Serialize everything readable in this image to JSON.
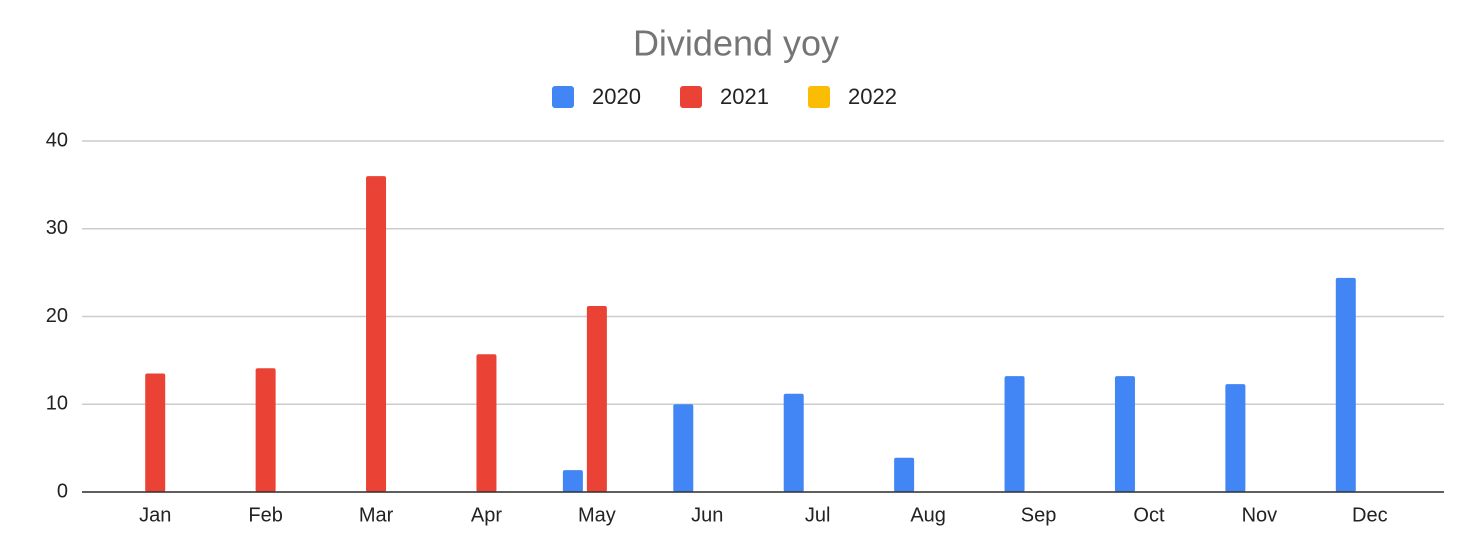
{
  "chart_data": {
    "type": "bar",
    "title": "Dividend yoy",
    "categories": [
      "Jan",
      "Feb",
      "Mar",
      "Apr",
      "May",
      "Jun",
      "Jul",
      "Aug",
      "Sep",
      "Oct",
      "Nov",
      "Dec"
    ],
    "series": [
      {
        "name": "2020",
        "color": "#4285f4",
        "values": [
          null,
          null,
          null,
          null,
          2.5,
          10.0,
          11.2,
          3.9,
          13.2,
          13.2,
          12.3,
          24.4
        ]
      },
      {
        "name": "2021",
        "color": "#ea4335",
        "values": [
          13.5,
          14.1,
          36.0,
          15.7,
          21.2,
          null,
          null,
          null,
          null,
          null,
          null,
          null
        ]
      },
      {
        "name": "2022",
        "color": "#fbbc04",
        "values": [
          null,
          null,
          null,
          null,
          null,
          null,
          null,
          null,
          null,
          null,
          null,
          null
        ]
      }
    ],
    "ylim": [
      0,
      40
    ],
    "yticks": [
      0,
      10,
      20,
      30,
      40
    ],
    "grid": true,
    "legend": "top"
  }
}
